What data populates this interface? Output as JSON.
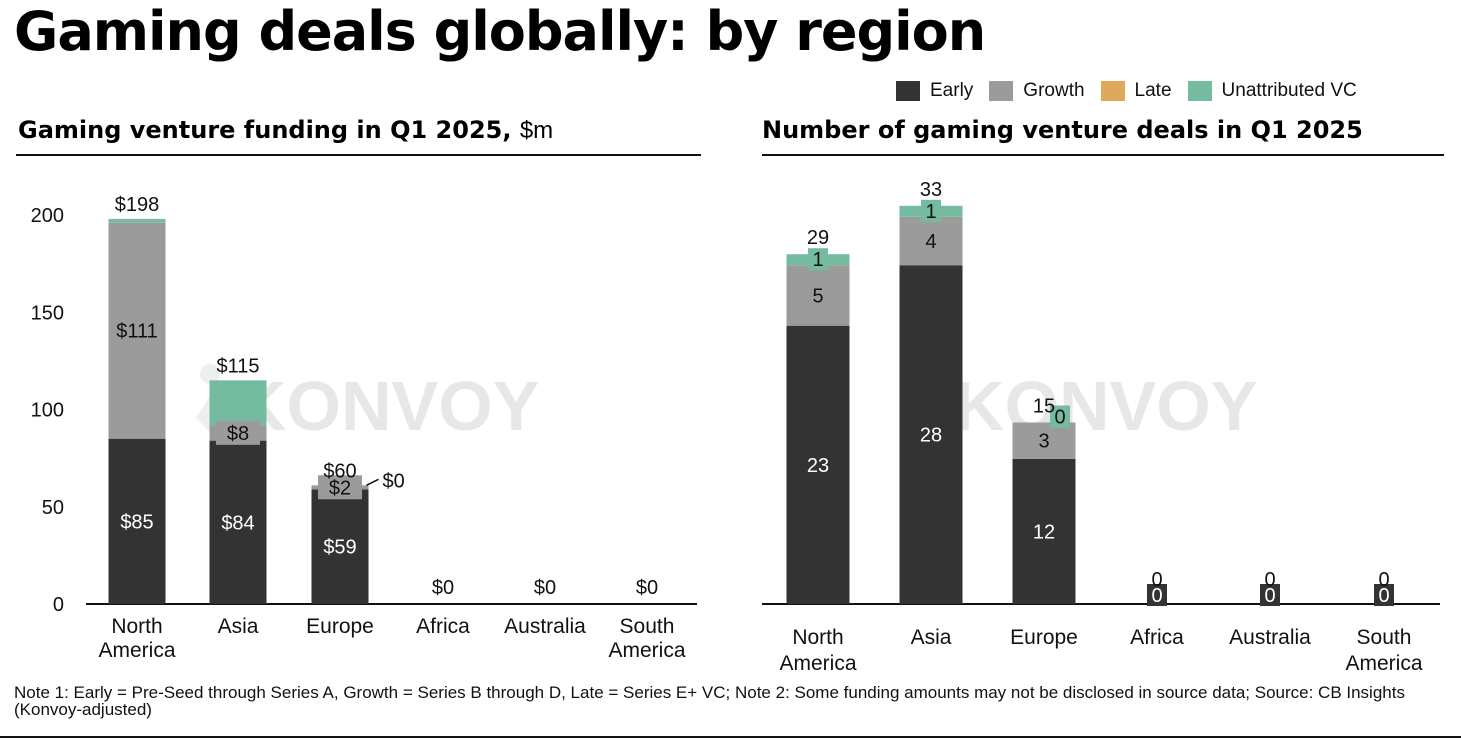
{
  "title": "Gaming deals globally: by region",
  "watermark": "KONVOY",
  "legend": [
    {
      "label": "Early",
      "color": "#333333"
    },
    {
      "label": "Growth",
      "color": "#9b9b9b"
    },
    {
      "label": "Late",
      "color": "#e0a85a"
    },
    {
      "label": "Unattributed VC",
      "color": "#74bba0"
    }
  ],
  "left_chart_title": "Gaming venture funding in Q1 2025,",
  "left_chart_unit": "$m",
  "right_chart_title": "Number of gaming venture deals in Q1 2025",
  "note": "Note 1: Early = Pre-Seed through Series A, Growth = Series B through D, Late = Series E+ VC; Note 2: Some funding amounts may not be disclosed in source data; Source: CB Insights (Konvoy-adjusted)",
  "chart_data": [
    {
      "type": "bar",
      "stacked": true,
      "title": "Gaming venture funding in Q1 2025, $m",
      "categories": [
        "North America",
        "Asia",
        "Europe",
        "Africa",
        "Australia",
        "South America"
      ],
      "category_lines": [
        [
          "North",
          "America"
        ],
        [
          "Asia"
        ],
        [
          "Europe"
        ],
        [
          "Africa"
        ],
        [
          "Australia"
        ],
        [
          "South",
          "America"
        ]
      ],
      "series": [
        {
          "name": "Early",
          "values": [
            85,
            84,
            59,
            0,
            0,
            0
          ],
          "labels": [
            "$85",
            "$84",
            "$59",
            "",
            "",
            ""
          ]
        },
        {
          "name": "Growth",
          "values": [
            111,
            8,
            2,
            0,
            0,
            0
          ],
          "labels": [
            "$111",
            "$8",
            "$2",
            "",
            "",
            ""
          ]
        },
        {
          "name": "Late",
          "values": [
            0,
            0,
            0,
            0,
            0,
            0
          ],
          "labels": [
            "",
            "",
            "$0",
            "",
            "",
            ""
          ]
        },
        {
          "name": "Unattributed VC",
          "values": [
            2,
            23,
            0,
            0,
            0,
            0
          ],
          "labels": [
            "",
            "",
            "",
            "",
            "",
            ""
          ]
        }
      ],
      "totals": [
        "$198",
        "$115",
        "$60",
        "$0",
        "$0",
        "$0"
      ],
      "ylim": [
        0,
        200
      ],
      "yticks": [
        0,
        50,
        100,
        150,
        200
      ]
    },
    {
      "type": "bar",
      "stacked": true,
      "title": "Number of gaming venture deals in Q1 2025",
      "categories": [
        "North America",
        "Asia",
        "Europe",
        "Africa",
        "Australia",
        "South America"
      ],
      "category_lines": [
        [
          "North",
          "America"
        ],
        [
          "Asia"
        ],
        [
          "Europe"
        ],
        [
          "Africa"
        ],
        [
          "Australia"
        ],
        [
          "South",
          "America"
        ]
      ],
      "series": [
        {
          "name": "Early",
          "values": [
            23,
            28,
            12,
            0,
            0,
            0
          ],
          "labels": [
            "23",
            "28",
            "12",
            "0",
            "0",
            "0"
          ]
        },
        {
          "name": "Growth",
          "values": [
            5,
            4,
            3,
            0,
            0,
            0
          ],
          "labels": [
            "5",
            "4",
            "3",
            "",
            "",
            ""
          ]
        },
        {
          "name": "Late",
          "values": [
            0,
            0,
            0,
            0,
            0,
            0
          ],
          "labels": [
            "",
            "",
            "",
            "",
            "",
            ""
          ]
        },
        {
          "name": "Unattributed VC",
          "values": [
            1,
            1,
            0,
            0,
            0,
            0
          ],
          "labels": [
            "1",
            "1",
            "0",
            "",
            "",
            ""
          ]
        }
      ],
      "totals": [
        "29",
        "33",
        "15",
        "0",
        "0",
        "0"
      ],
      "ylim": [
        0,
        33
      ]
    }
  ]
}
